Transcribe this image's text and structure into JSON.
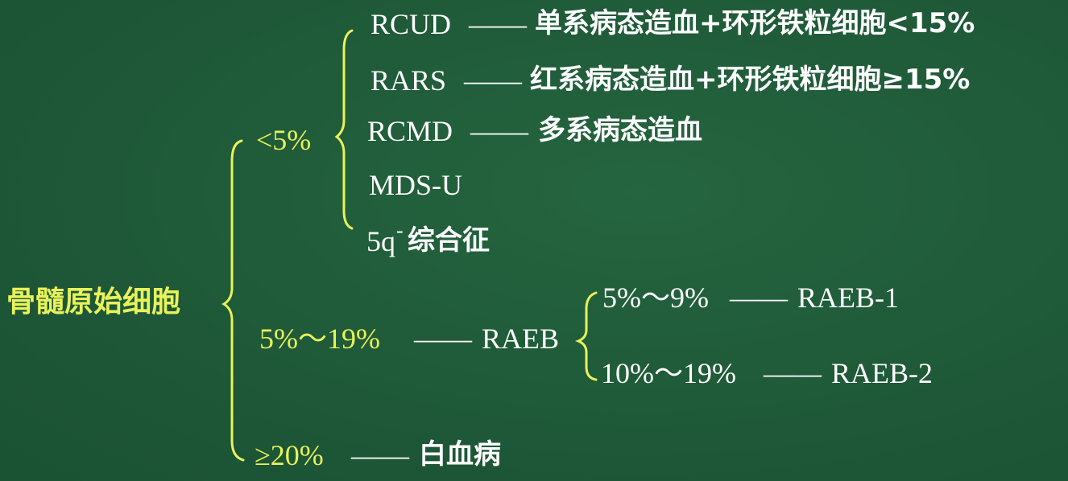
{
  "root": "骨髓原始细胞",
  "branch_lt5": {
    "range": "<5%",
    "items": [
      {
        "code": "RCUD",
        "dash": "——",
        "desc": "单系病态造血+环形铁粒细胞<15%"
      },
      {
        "code": "RARS",
        "dash": "——",
        "desc": "红系病态造血+环形铁粒细胞≥15%"
      },
      {
        "code": "RCMD",
        "dash": "——",
        "desc": "多系病态造血"
      },
      {
        "code": "MDS-U"
      },
      {
        "code": "5q",
        "superscript": "-",
        "desc": "综合征"
      }
    ]
  },
  "branch_5_19": {
    "range": "5%～19%",
    "dash": "——",
    "code": "RAEB",
    "sub": [
      {
        "range": "5%～9%",
        "dash": "——",
        "code": "RAEB-1"
      },
      {
        "range": "10%～19%",
        "dash": "——",
        "code": "RAEB-2"
      }
    ]
  },
  "branch_ge20": {
    "range": "≥20%",
    "dash": "——",
    "desc": "白血病"
  },
  "colors": {
    "board": "#1f5a3c",
    "text": "#ffffff",
    "highlight": "#e8f25a"
  }
}
